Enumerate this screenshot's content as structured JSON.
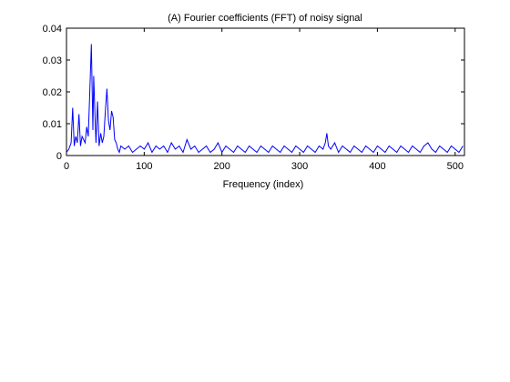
{
  "chart_data": {
    "type": "line",
    "title": "(A) Fourier coefficients (FFT) of noisy signal",
    "xlabel": "Frequency (index)",
    "ylabel": "",
    "xlim": [
      0,
      512
    ],
    "ylim": [
      0,
      0.04
    ],
    "xticks": [
      0,
      100,
      200,
      300,
      400,
      500
    ],
    "yticks": [
      0,
      0.01,
      0.02,
      0.03,
      0.04
    ],
    "ytick_labels": [
      "0",
      "0.01",
      "0.02",
      "0.03",
      "0.04"
    ],
    "grid": false,
    "line_color": "#0000ff",
    "series": [
      {
        "x": [
          0,
          3,
          6,
          8,
          10,
          12,
          14,
          16,
          18,
          20,
          22,
          24,
          26,
          28,
          30,
          32,
          34,
          35,
          37,
          38,
          40,
          42,
          44,
          46,
          48,
          50,
          52,
          54,
          56,
          58,
          60,
          62,
          64,
          66,
          68,
          70,
          75,
          80,
          85,
          90,
          95,
          100,
          105,
          110,
          115,
          120,
          125,
          130,
          135,
          140,
          145,
          150,
          155,
          160,
          165,
          170,
          175,
          180,
          185,
          190,
          195,
          200,
          205,
          210,
          215,
          220,
          225,
          230,
          235,
          240,
          245,
          250,
          255,
          260,
          265,
          270,
          275,
          280,
          285,
          290,
          295,
          300,
          305,
          310,
          315,
          320,
          325,
          330,
          333,
          335,
          337,
          340,
          345,
          350,
          355,
          360,
          365,
          370,
          375,
          380,
          385,
          390,
          395,
          400,
          405,
          410,
          415,
          420,
          425,
          430,
          435,
          440,
          445,
          450,
          455,
          460,
          465,
          470,
          475,
          480,
          485,
          490,
          495,
          500,
          505,
          510
        ],
        "y": [
          0.001,
          0.002,
          0.004,
          0.015,
          0.003,
          0.006,
          0.004,
          0.013,
          0.003,
          0.006,
          0.005,
          0.004,
          0.009,
          0.006,
          0.02,
          0.035,
          0.008,
          0.025,
          0.01,
          0.004,
          0.017,
          0.003,
          0.007,
          0.004,
          0.006,
          0.014,
          0.021,
          0.011,
          0.008,
          0.014,
          0.012,
          0.005,
          0.004,
          0.002,
          0.001,
          0.003,
          0.002,
          0.003,
          0.001,
          0.002,
          0.003,
          0.002,
          0.004,
          0.001,
          0.003,
          0.002,
          0.003,
          0.001,
          0.004,
          0.002,
          0.003,
          0.001,
          0.005,
          0.002,
          0.003,
          0.001,
          0.002,
          0.003,
          0.001,
          0.002,
          0.004,
          0.001,
          0.003,
          0.002,
          0.001,
          0.003,
          0.002,
          0.001,
          0.003,
          0.002,
          0.001,
          0.003,
          0.002,
          0.001,
          0.003,
          0.002,
          0.001,
          0.003,
          0.002,
          0.001,
          0.003,
          0.002,
          0.001,
          0.003,
          0.002,
          0.001,
          0.003,
          0.002,
          0.004,
          0.007,
          0.003,
          0.002,
          0.004,
          0.001,
          0.003,
          0.002,
          0.001,
          0.003,
          0.002,
          0.001,
          0.003,
          0.002,
          0.001,
          0.003,
          0.002,
          0.001,
          0.003,
          0.002,
          0.001,
          0.003,
          0.002,
          0.001,
          0.003,
          0.002,
          0.001,
          0.003,
          0.004,
          0.002,
          0.001,
          0.003,
          0.002,
          0.001,
          0.003,
          0.002,
          0.001,
          0.003
        ]
      }
    ]
  }
}
